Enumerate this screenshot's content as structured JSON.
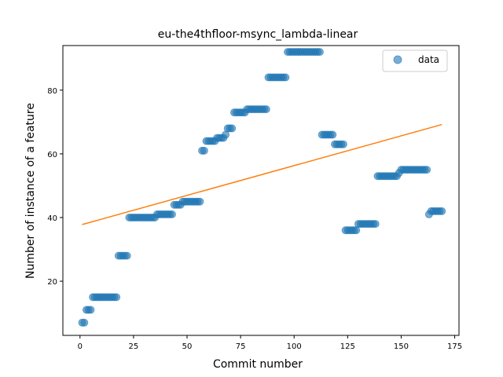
{
  "chart_data": {
    "type": "scatter",
    "title": "eu-the4thfloor-msync_lambda-linear",
    "xlabel": "Commit number",
    "ylabel": "Number of instance of a feature",
    "xlim": [
      -8,
      177
    ],
    "ylim": [
      3,
      94
    ],
    "xticks": [
      0,
      25,
      50,
      75,
      100,
      125,
      150,
      175
    ],
    "yticks": [
      20,
      40,
      60,
      80
    ],
    "grid": false,
    "legend": {
      "position": "top-right",
      "entries": [
        "data"
      ]
    },
    "colors": {
      "points": "#1f77b4",
      "fit_line": "#ff7f0e"
    },
    "series": [
      {
        "name": "data",
        "kind": "scatter",
        "points": [
          [
            1,
            7
          ],
          [
            2,
            7
          ],
          [
            3,
            11
          ],
          [
            4,
            11
          ],
          [
            5,
            11
          ],
          [
            6,
            15
          ],
          [
            7,
            15
          ],
          [
            8,
            15
          ],
          [
            9,
            15
          ],
          [
            10,
            15
          ],
          [
            11,
            15
          ],
          [
            12,
            15
          ],
          [
            13,
            15
          ],
          [
            14,
            15
          ],
          [
            15,
            15
          ],
          [
            16,
            15
          ],
          [
            17,
            15
          ],
          [
            18,
            28
          ],
          [
            19,
            28
          ],
          [
            20,
            28
          ],
          [
            21,
            28
          ],
          [
            22,
            28
          ],
          [
            23,
            40
          ],
          [
            24,
            40
          ],
          [
            25,
            40
          ],
          [
            26,
            40
          ],
          [
            27,
            40
          ],
          [
            28,
            40
          ],
          [
            29,
            40
          ],
          [
            30,
            40
          ],
          [
            31,
            40
          ],
          [
            32,
            40
          ],
          [
            33,
            40
          ],
          [
            34,
            40
          ],
          [
            35,
            40
          ],
          [
            36,
            41
          ],
          [
            37,
            41
          ],
          [
            38,
            41
          ],
          [
            39,
            41
          ],
          [
            40,
            41
          ],
          [
            41,
            41
          ],
          [
            42,
            41
          ],
          [
            43,
            41
          ],
          [
            44,
            44
          ],
          [
            45,
            44
          ],
          [
            46,
            44
          ],
          [
            47,
            44
          ],
          [
            48,
            45
          ],
          [
            49,
            45
          ],
          [
            50,
            45
          ],
          [
            51,
            45
          ],
          [
            52,
            45
          ],
          [
            53,
            45
          ],
          [
            54,
            45
          ],
          [
            55,
            45
          ],
          [
            56,
            45
          ],
          [
            57,
            61
          ],
          [
            58,
            61
          ],
          [
            59,
            64
          ],
          [
            60,
            64
          ],
          [
            61,
            64
          ],
          [
            62,
            64
          ],
          [
            63,
            64
          ],
          [
            64,
            65
          ],
          [
            65,
            65
          ],
          [
            66,
            65
          ],
          [
            67,
            65
          ],
          [
            68,
            66
          ],
          [
            69,
            68
          ],
          [
            70,
            68
          ],
          [
            71,
            68
          ],
          [
            72,
            73
          ],
          [
            73,
            73
          ],
          [
            74,
            73
          ],
          [
            75,
            73
          ],
          [
            76,
            73
          ],
          [
            77,
            73
          ],
          [
            78,
            74
          ],
          [
            79,
            74
          ],
          [
            80,
            74
          ],
          [
            81,
            74
          ],
          [
            82,
            74
          ],
          [
            83,
            74
          ],
          [
            84,
            74
          ],
          [
            85,
            74
          ],
          [
            86,
            74
          ],
          [
            87,
            74
          ],
          [
            88,
            84
          ],
          [
            89,
            84
          ],
          [
            90,
            84
          ],
          [
            91,
            84
          ],
          [
            92,
            84
          ],
          [
            93,
            84
          ],
          [
            94,
            84
          ],
          [
            95,
            84
          ],
          [
            96,
            84
          ],
          [
            97,
            92
          ],
          [
            98,
            92
          ],
          [
            99,
            92
          ],
          [
            100,
            92
          ],
          [
            101,
            92
          ],
          [
            102,
            92
          ],
          [
            103,
            92
          ],
          [
            104,
            92
          ],
          [
            105,
            92
          ],
          [
            106,
            92
          ],
          [
            107,
            92
          ],
          [
            108,
            92
          ],
          [
            109,
            92
          ],
          [
            110,
            92
          ],
          [
            111,
            92
          ],
          [
            112,
            92
          ],
          [
            113,
            66
          ],
          [
            114,
            66
          ],
          [
            115,
            66
          ],
          [
            116,
            66
          ],
          [
            117,
            66
          ],
          [
            118,
            66
          ],
          [
            119,
            63
          ],
          [
            120,
            63
          ],
          [
            121,
            63
          ],
          [
            122,
            63
          ],
          [
            123,
            63
          ],
          [
            124,
            36
          ],
          [
            125,
            36
          ],
          [
            126,
            36
          ],
          [
            127,
            36
          ],
          [
            128,
            36
          ],
          [
            129,
            36
          ],
          [
            130,
            38
          ],
          [
            131,
            38
          ],
          [
            132,
            38
          ],
          [
            133,
            38
          ],
          [
            134,
            38
          ],
          [
            135,
            38
          ],
          [
            136,
            38
          ],
          [
            137,
            38
          ],
          [
            138,
            38
          ],
          [
            139,
            53
          ],
          [
            140,
            53
          ],
          [
            141,
            53
          ],
          [
            142,
            53
          ],
          [
            143,
            53
          ],
          [
            144,
            53
          ],
          [
            145,
            53
          ],
          [
            146,
            53
          ],
          [
            147,
            53
          ],
          [
            148,
            53
          ],
          [
            149,
            54
          ],
          [
            150,
            55
          ],
          [
            151,
            55
          ],
          [
            152,
            55
          ],
          [
            153,
            55
          ],
          [
            154,
            55
          ],
          [
            155,
            55
          ],
          [
            156,
            55
          ],
          [
            157,
            55
          ],
          [
            158,
            55
          ],
          [
            159,
            55
          ],
          [
            160,
            55
          ],
          [
            161,
            55
          ],
          [
            162,
            55
          ],
          [
            163,
            41
          ],
          [
            164,
            42
          ],
          [
            165,
            42
          ],
          [
            166,
            42
          ],
          [
            167,
            42
          ],
          [
            168,
            42
          ],
          [
            169,
            42
          ]
        ]
      },
      {
        "kind": "line",
        "points": [
          [
            1,
            37.8
          ],
          [
            169,
            69.2
          ]
        ]
      }
    ]
  }
}
